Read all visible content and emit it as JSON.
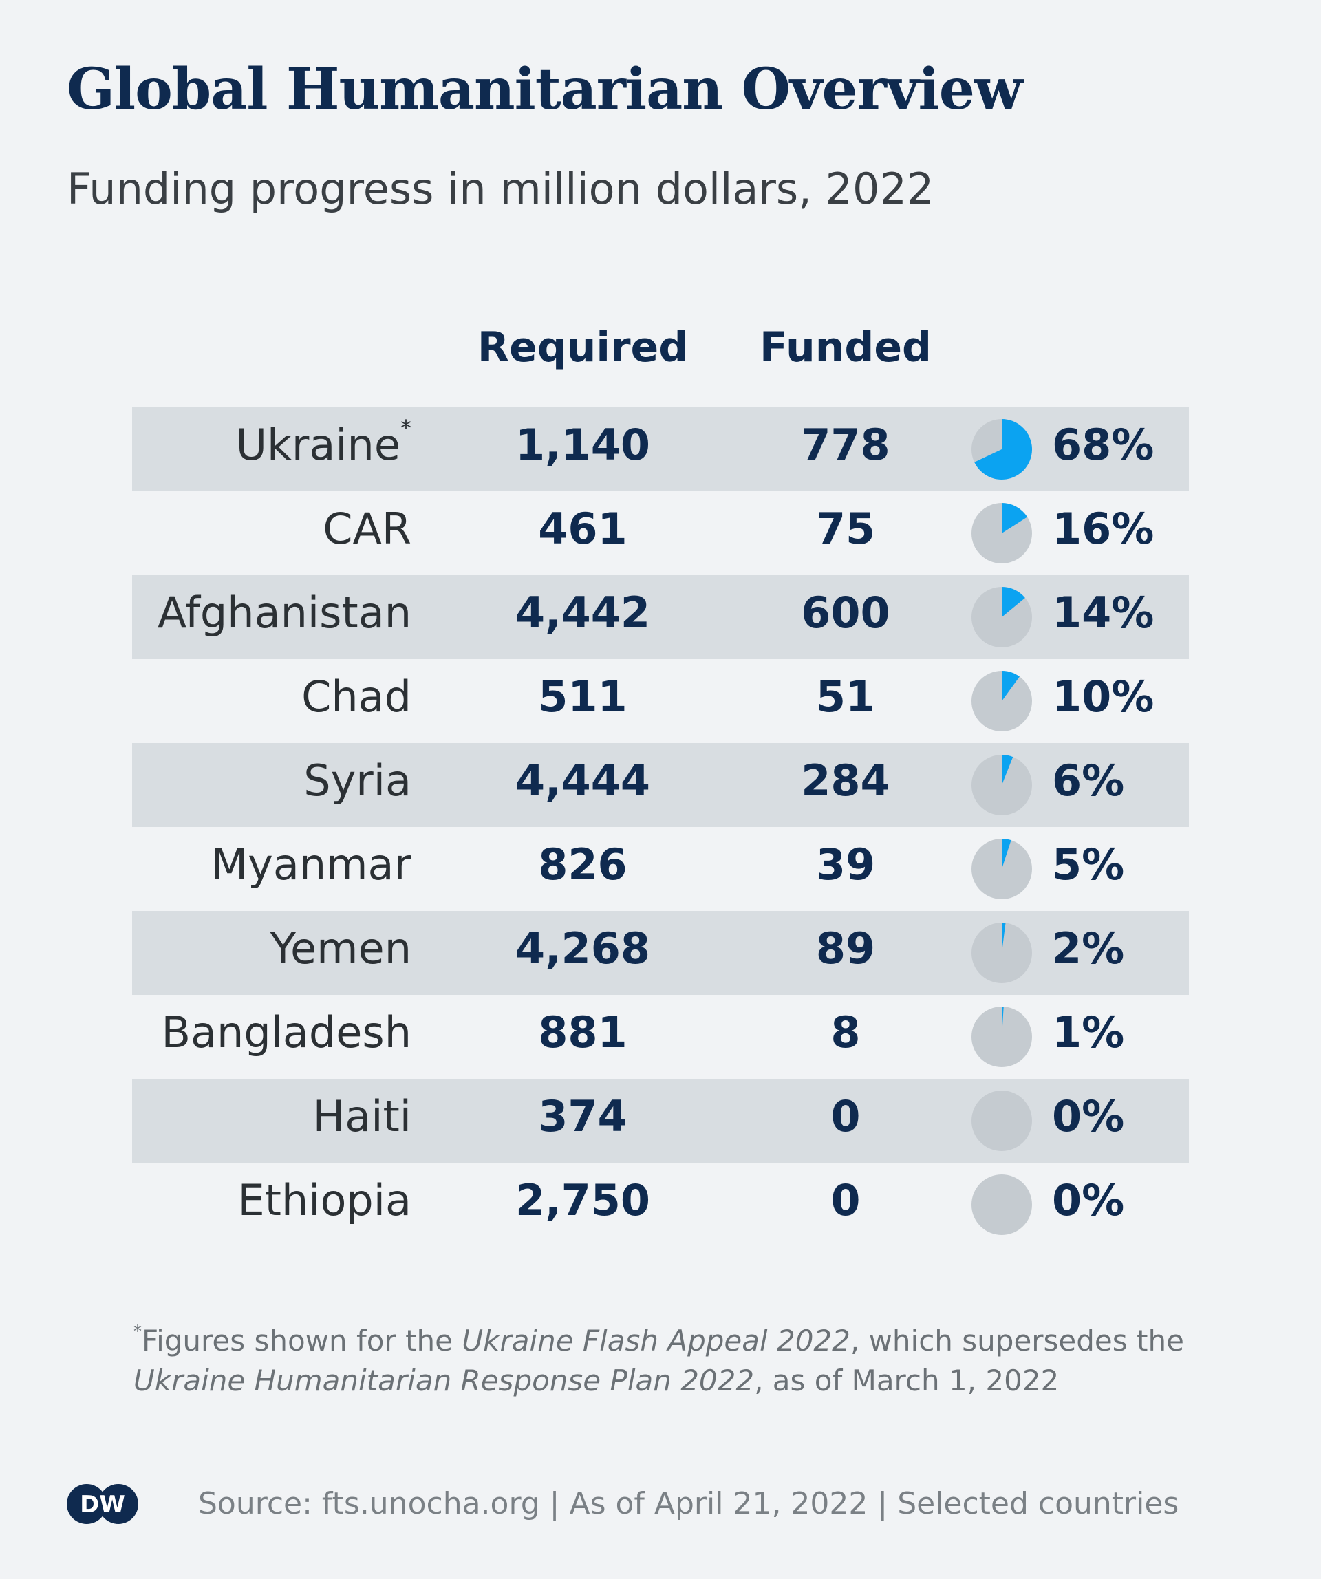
{
  "title": "Global Humanitarian Overview",
  "subtitle": "Funding progress in million dollars, 2022",
  "colors": {
    "title": "#0f2a4f",
    "value": "#0f2a4f",
    "pie_fill": "#0ba3f1",
    "pie_bg": "#c5cbd0",
    "row_shade": "#d8dde1",
    "background": "#f1f3f5"
  },
  "chart_data": {
    "type": "table",
    "columns": [
      "Required",
      "Funded"
    ],
    "rows": [
      {
        "country": "Ukraine",
        "note": "*",
        "required": "1,140",
        "funded": "778",
        "pct_label": "68%",
        "pct": 68
      },
      {
        "country": "CAR",
        "note": "",
        "required": "461",
        "funded": "75",
        "pct_label": "16%",
        "pct": 16
      },
      {
        "country": "Afghanistan",
        "note": "",
        "required": "4,442",
        "funded": "600",
        "pct_label": "14%",
        "pct": 14
      },
      {
        "country": "Chad",
        "note": "",
        "required": "511",
        "funded": "51",
        "pct_label": "10%",
        "pct": 10
      },
      {
        "country": "Syria",
        "note": "",
        "required": "4,444",
        "funded": "284",
        "pct_label": "6%",
        "pct": 6
      },
      {
        "country": "Myanmar",
        "note": "",
        "required": "826",
        "funded": "39",
        "pct_label": "5%",
        "pct": 5
      },
      {
        "country": "Yemen",
        "note": "",
        "required": "4,268",
        "funded": "89",
        "pct_label": "2%",
        "pct": 2
      },
      {
        "country": "Bangladesh",
        "note": "",
        "required": "881",
        "funded": "8",
        "pct_label": "1%",
        "pct": 1
      },
      {
        "country": "Haiti",
        "note": "",
        "required": "374",
        "funded": "0",
        "pct_label": "0%",
        "pct": 0
      },
      {
        "country": "Ethiopia",
        "note": "",
        "required": "2,750",
        "funded": "0",
        "pct_label": "0%",
        "pct": 0
      }
    ]
  },
  "footnote": {
    "marker": "*",
    "part1": "Figures shown for the ",
    "italic1": "Ukraine Flash Appeal 2022",
    "part2": ", which supersedes the ",
    "italic2": "Ukraine Humanitarian Response Plan 2022",
    "part3": ", as of March 1, 2022"
  },
  "logo_text": "DW",
  "source": "Source: fts.unocha.org | As of April 21, 2022 | Selected countries"
}
